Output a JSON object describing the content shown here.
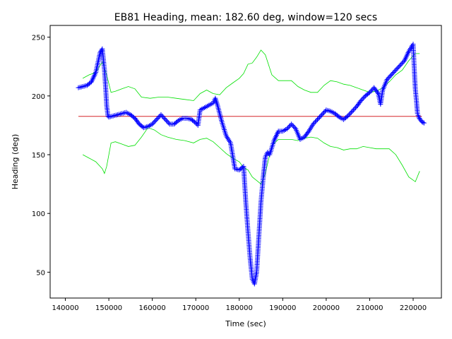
{
  "chart_data": {
    "type": "scatter",
    "title": "EB81 Heading, mean: 182.60 deg, window=120 secs",
    "xlabel": "Time (sec)",
    "ylabel": "Heading (deg)",
    "xlim": [
      136500,
      226500
    ],
    "ylim": [
      28,
      260
    ],
    "xticks": [
      140000,
      150000,
      160000,
      170000,
      180000,
      190000,
      200000,
      210000,
      220000
    ],
    "xtick_labels": [
      "140000",
      "150000",
      "160000",
      "170000",
      "180000",
      "190000",
      "200000",
      "210000",
      "220000"
    ],
    "yticks": [
      50,
      100,
      150,
      200,
      250
    ],
    "ytick_labels": [
      "50",
      "100",
      "150",
      "200",
      "250"
    ],
    "grid": false,
    "mean_line": {
      "value": 182.6,
      "x": [
        143000,
        222000
      ],
      "color": "#d62728"
    },
    "series": [
      {
        "marker": "+",
        "color": "#0000ff",
        "points_x": [
          143000,
          145000,
          146000,
          147000,
          148000,
          148500,
          149000,
          149300,
          149500,
          149800,
          150000,
          151000,
          152000,
          153000,
          154000,
          155000,
          156000,
          157000,
          158000,
          159000,
          160000,
          161000,
          162000,
          163000,
          164000,
          165000,
          166000,
          167000,
          168000,
          169000,
          170000,
          170500,
          171000,
          172000,
          173000,
          174000,
          174500,
          175000,
          176000,
          177000,
          178000,
          179000,
          180000,
          181000,
          181500,
          182000,
          182500,
          183000,
          183500,
          184000,
          184500,
          185000,
          185500,
          186000,
          186500,
          187000,
          188000,
          189000,
          190000,
          191000,
          192000,
          193000,
          194000,
          195000,
          196000,
          197000,
          198000,
          199000,
          200000,
          201000,
          202000,
          203000,
          204000,
          205000,
          206000,
          207000,
          208000,
          209000,
          210000,
          211000,
          212000,
          212500,
          213000,
          214000,
          215000,
          216000,
          217000,
          218000,
          219000,
          220000,
          220300,
          220500,
          220800,
          221000,
          221300,
          221600,
          222000,
          222500
        ],
        "points_y": [
          207,
          209,
          212,
          220,
          237,
          240,
          222,
          205,
          192,
          183,
          182,
          183,
          184,
          185,
          186,
          184,
          181,
          176,
          173,
          174,
          176,
          180,
          184,
          180,
          176,
          176,
          179,
          181,
          181,
          180,
          177,
          175,
          188,
          190,
          192,
          194,
          198,
          192,
          178,
          166,
          160,
          138,
          137,
          140,
          110,
          85,
          62,
          44,
          40,
          50,
          80,
          110,
          130,
          148,
          152,
          150,
          162,
          170,
          170,
          172,
          176,
          172,
          163,
          165,
          170,
          176,
          180,
          184,
          188,
          187,
          185,
          182,
          180,
          183,
          187,
          191,
          196,
          200,
          203,
          207,
          202,
          193,
          205,
          214,
          218,
          222,
          226,
          230,
          238,
          244,
          220,
          206,
          194,
          185,
          182,
          180,
          178,
          177
        ]
      },
      {
        "line": true,
        "color": "#00e000",
        "name_role": "upper envelope",
        "x": [
          144000,
          145500,
          147000,
          148500,
          149500,
          150500,
          151500,
          153000,
          154500,
          156000,
          157500,
          159500,
          161500,
          163500,
          165500,
          167500,
          169500,
          171000,
          172500,
          174000,
          175500,
          177000,
          178500,
          180000,
          181000,
          182000,
          183000,
          184000,
          185000,
          186000,
          187500,
          189000,
          190500,
          192000,
          193500,
          195000,
          196500,
          198000,
          199500,
          201000,
          202500,
          204000,
          205500,
          207000,
          208500,
          210000,
          211500,
          213000,
          214500,
          216000,
          217500,
          219000,
          220500,
          221500
        ],
        "y": [
          215,
          218,
          220,
          229,
          218,
          203,
          204,
          206,
          208,
          206,
          199,
          198,
          199,
          199,
          198,
          197,
          196,
          202,
          205,
          202,
          201,
          207,
          211,
          215,
          219,
          227,
          228,
          233,
          239,
          235,
          218,
          213,
          213,
          213,
          208,
          205,
          203,
          203,
          209,
          213,
          212,
          210,
          209,
          207,
          205,
          203,
          204,
          207,
          212,
          218,
          222,
          230,
          236,
          236
        ]
      },
      {
        "line": true,
        "color": "#00e000",
        "name_role": "lower envelope",
        "x": [
          144000,
          145500,
          147000,
          148500,
          149000,
          149500,
          150500,
          151500,
          153000,
          154500,
          156000,
          157500,
          159000,
          160500,
          162000,
          163500,
          165500,
          167500,
          169500,
          171000,
          172500,
          174000,
          175500,
          177000,
          178500,
          180000,
          181000,
          182000,
          183000,
          184000,
          185000,
          186000,
          187500,
          189000,
          190500,
          192000,
          193500,
          195000,
          196500,
          198000,
          199500,
          201000,
          202500,
          204000,
          205500,
          207000,
          208500,
          210000,
          211500,
          213000,
          214500,
          216000,
          217500,
          219000,
          220500,
          221500
        ],
        "y": [
          150,
          147,
          144,
          138,
          134,
          140,
          160,
          161,
          159,
          157,
          158,
          165,
          173,
          171,
          167,
          165,
          163,
          162,
          160,
          163,
          164,
          161,
          156,
          151,
          147,
          144,
          139,
          137,
          131,
          128,
          125,
          134,
          158,
          163,
          163,
          163,
          162,
          164,
          165,
          164,
          160,
          157,
          156,
          154,
          155,
          155,
          157,
          156,
          155,
          155,
          155,
          150,
          141,
          131,
          127,
          136
        ]
      }
    ]
  }
}
